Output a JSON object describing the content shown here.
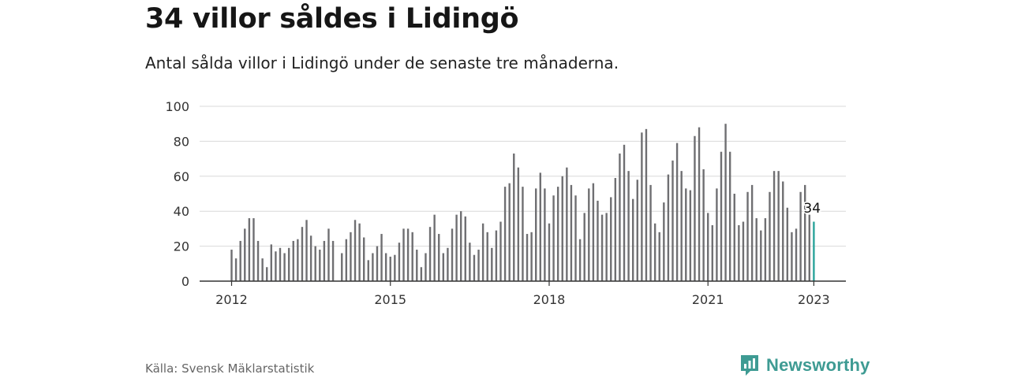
{
  "title": "34 villor såldes i Lidingö",
  "subtitle": "Antal sålda villor i Lidingö under de senaste tre månaderna.",
  "source": "Källa: Svensk Mäklarstatistik",
  "brand": {
    "name": "Newsworthy",
    "icon": "newsworthy-logo-icon",
    "color": "#3e9b93"
  },
  "colors": {
    "bar": "#6f6f72",
    "highlight": "#2aa39b",
    "grid": "#d9d9d9",
    "axis": "#333333"
  },
  "chart_data": {
    "type": "bar",
    "ylim": [
      0,
      100
    ],
    "yticks": [
      0,
      20,
      40,
      60,
      80,
      100
    ],
    "xtick_labels": [
      {
        "label": "2012",
        "index": 0
      },
      {
        "label": "2015",
        "index": 36
      },
      {
        "label": "2018",
        "index": 72
      },
      {
        "label": "2021",
        "index": 108
      },
      {
        "label": "2023",
        "index": 132
      }
    ],
    "grid": true,
    "annotation": {
      "index": 132,
      "text": "34"
    },
    "values": [
      18,
      13,
      23,
      30,
      36,
      36,
      23,
      13,
      8,
      21,
      17,
      19,
      16,
      19,
      23,
      24,
      31,
      35,
      26,
      20,
      18,
      23,
      30,
      23,
      0,
      16,
      24,
      28,
      35,
      33,
      25,
      12,
      16,
      20,
      27,
      16,
      14,
      15,
      22,
      30,
      30,
      28,
      18,
      8,
      16,
      31,
      38,
      27,
      16,
      19,
      30,
      38,
      40,
      37,
      22,
      15,
      18,
      33,
      28,
      19,
      29,
      34,
      54,
      56,
      73,
      65,
      54,
      27,
      28,
      53,
      62,
      53,
      33,
      49,
      54,
      60,
      65,
      55,
      49,
      24,
      39,
      53,
      56,
      46,
      38,
      39,
      48,
      59,
      73,
      78,
      63,
      47,
      58,
      85,
      87,
      55,
      33,
      28,
      45,
      61,
      69,
      79,
      63,
      53,
      52,
      83,
      88,
      64,
      39,
      32,
      53,
      74,
      90,
      74,
      50,
      32,
      34,
      51,
      55,
      36,
      29,
      36,
      51,
      63,
      63,
      57,
      42,
      28,
      30,
      51,
      55,
      38,
      34
    ]
  }
}
